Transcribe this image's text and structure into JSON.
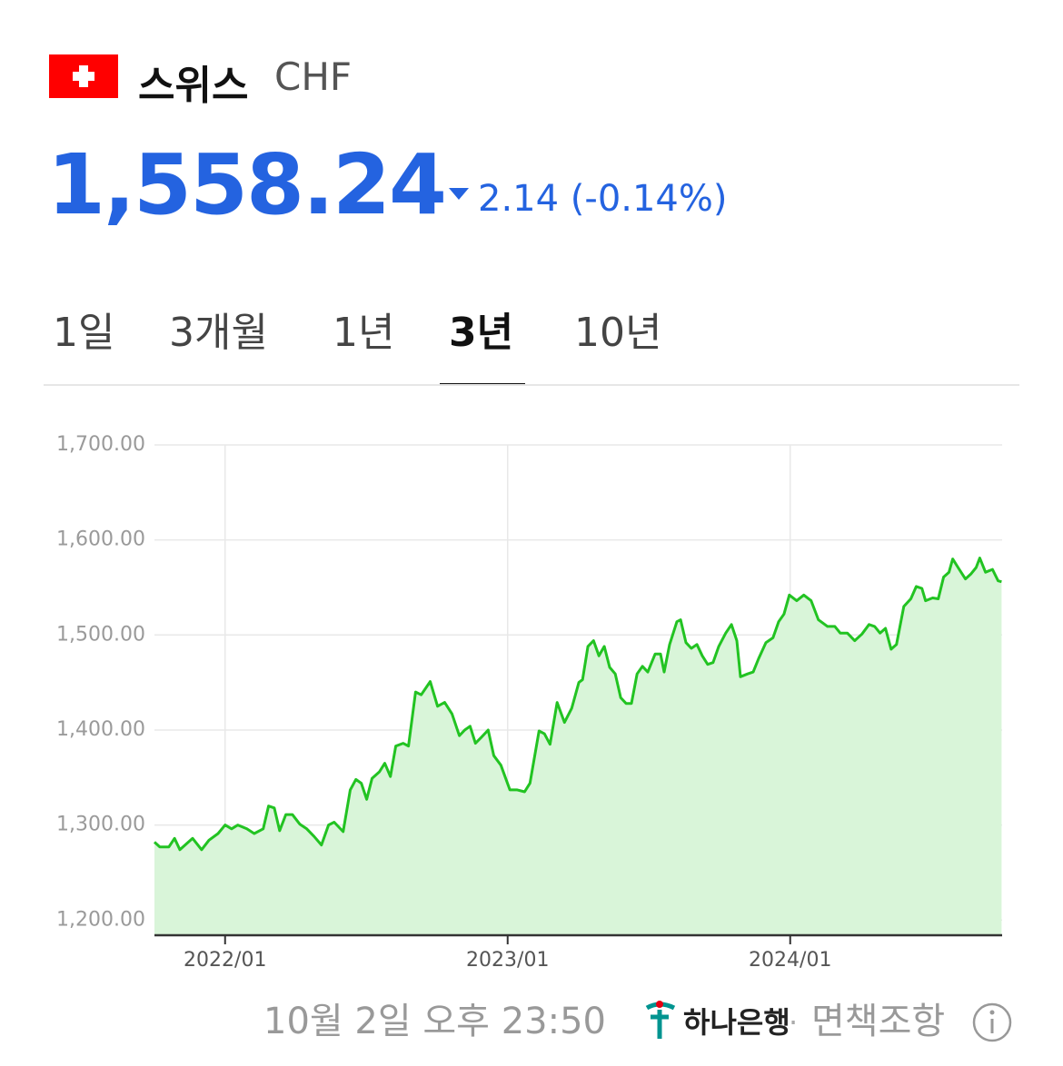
{
  "header": {
    "name": "스위스",
    "currency": "CHF",
    "price": "1,558.24",
    "change": "2.14 (-0.14%)"
  },
  "tabs": {
    "items": [
      "1일",
      "3개월",
      "1년",
      "3년",
      "10년"
    ],
    "active": 3
  },
  "chart_data": {
    "type": "line",
    "grid": true,
    "x": [
      2021.75,
      2021.769,
      2021.801,
      2021.821,
      2021.84,
      2021.866,
      2021.885,
      2021.917,
      2021.943,
      2021.975,
      2022.0,
      2022.023,
      2022.045,
      2022.077,
      2022.103,
      2022.135,
      2022.154,
      2022.174,
      2022.193,
      2022.215,
      2022.238,
      2022.264,
      2022.289,
      2022.315,
      2022.341,
      2022.366,
      2022.386,
      2022.418,
      2022.443,
      2022.463,
      2022.482,
      2022.501,
      2022.52,
      2022.546,
      2022.565,
      2022.585,
      2022.604,
      2022.63,
      2022.649,
      2022.674,
      2022.694,
      2022.726,
      2022.752,
      2022.777,
      2022.803,
      2022.829,
      2022.848,
      2022.867,
      2022.886,
      2022.906,
      2022.931,
      2022.951,
      2022.976,
      2023.008,
      2023.034,
      2023.06,
      2023.079,
      2023.111,
      2023.13,
      2023.15,
      2023.175,
      2023.201,
      2023.227,
      2023.252,
      2023.265,
      2023.284,
      2023.304,
      2023.323,
      2023.342,
      2023.361,
      2023.381,
      2023.4,
      2023.419,
      2023.438,
      2023.458,
      2023.477,
      2023.496,
      2023.522,
      2023.541,
      2023.554,
      2023.573,
      2023.599,
      2023.612,
      2023.631,
      2023.65,
      2023.67,
      2023.689,
      2023.708,
      2023.727,
      2023.747,
      2023.772,
      2023.792,
      2023.811,
      2023.824,
      2023.849,
      2023.869,
      2023.888,
      2023.914,
      2023.939,
      2023.959,
      2023.978,
      2023.997,
      2024.023,
      2024.048,
      2024.074,
      2024.1,
      2024.132,
      2024.158,
      2024.177,
      2024.202,
      2024.228,
      2024.254,
      2024.279,
      2024.299,
      2024.318,
      2024.337,
      2024.357,
      2024.376,
      2024.402,
      2024.427,
      2024.446,
      2024.466,
      2024.479,
      2024.504,
      2024.524,
      2024.543,
      2024.562,
      2024.575,
      2024.594,
      2024.62,
      2024.639,
      2024.658,
      2024.671,
      2024.691,
      2024.716,
      2024.736,
      2024.748
    ],
    "series": [
      {
        "color": "#22c322",
        "fill": "#d9f5d9",
        "values": [
          1282,
          1277,
          1277,
          1286,
          1274,
          1281,
          1286,
          1274,
          1284,
          1291,
          1300,
          1296,
          1300,
          1296,
          1291,
          1296,
          1320,
          1318,
          1294,
          1311,
          1311,
          1301,
          1296,
          1288,
          1279,
          1300,
          1303,
          1293,
          1337,
          1348,
          1344,
          1327,
          1349,
          1356,
          1365,
          1351,
          1383,
          1386,
          1383,
          1440,
          1437,
          1451,
          1425,
          1429,
          1417,
          1394,
          1400,
          1404,
          1386,
          1392,
          1400,
          1373,
          1363,
          1337,
          1337,
          1335,
          1344,
          1399,
          1396,
          1385,
          1429,
          1408,
          1423,
          1450,
          1453,
          1488,
          1494,
          1478,
          1488,
          1466,
          1459,
          1434,
          1428,
          1428,
          1459,
          1467,
          1461,
          1480,
          1480,
          1461,
          1490,
          1514,
          1516,
          1492,
          1486,
          1490,
          1478,
          1469,
          1471,
          1488,
          1502,
          1511,
          1494,
          1456,
          1459,
          1461,
          1475,
          1492,
          1497,
          1514,
          1522,
          1542,
          1536,
          1542,
          1536,
          1516,
          1509,
          1509,
          1502,
          1502,
          1494,
          1501,
          1511,
          1509,
          1502,
          1507,
          1485,
          1490,
          1530,
          1538,
          1551,
          1549,
          1536,
          1539,
          1538,
          1561,
          1566,
          1580,
          1571,
          1559,
          1564,
          1571,
          1581,
          1566,
          1569,
          1557,
          1556
        ]
      }
    ],
    "xlim": [
      2021.75,
      2024.75
    ],
    "xticks": [
      {
        "value": 2022,
        "label": "2022/01"
      },
      {
        "value": 2023,
        "label": "2023/01"
      },
      {
        "value": 2024,
        "label": "2024/01"
      }
    ],
    "ylim": [
      1184,
      1700
    ],
    "yticks": [
      {
        "value": 1200,
        "label": "1,200.00"
      },
      {
        "value": 1300,
        "label": "1,300.00"
      },
      {
        "value": 1400,
        "label": "1,400.00"
      },
      {
        "value": 1500,
        "label": "1,500.00"
      },
      {
        "value": 1600,
        "label": "1,600.00"
      },
      {
        "value": 1700,
        "label": "1,700.00"
      }
    ]
  },
  "footer": {
    "timestamp": "10월 2일 오후 23:50",
    "bank": "하나은행",
    "separator": "·",
    "disclaimer": "면책조항"
  }
}
